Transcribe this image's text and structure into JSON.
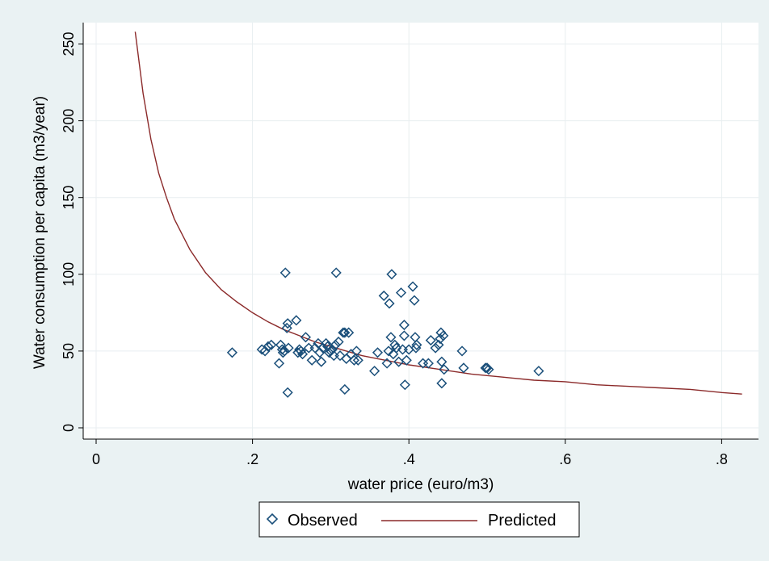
{
  "chart_data": {
    "type": "scatter",
    "xlabel": "water price (euro/m3)",
    "ylabel": "Water consumption  per capita (m3/year)",
    "xlim": [
      0,
      0.85
    ],
    "ylim": [
      0,
      260
    ],
    "x_ticks": [
      0,
      0.2,
      0.4,
      0.6,
      0.8
    ],
    "x_tick_labels": [
      "0",
      ".2",
      ".4",
      ".6",
      ".8"
    ],
    "y_ticks": [
      0,
      50,
      100,
      150,
      200,
      250
    ],
    "y_tick_labels": [
      "0",
      "50",
      "100",
      "150",
      "200",
      "250"
    ],
    "grid": "horizontal and vertical at ticks",
    "legend_placement": "bottom-center",
    "colors": {
      "observed": "#1a4f7a",
      "predicted": "#8b2a2a",
      "background": "#eaf2f3",
      "plot_area": "#ffffff",
      "grid": "#e8eef0"
    },
    "series": [
      {
        "name": "Observed",
        "type": "scatter",
        "marker": "diamond-hollow",
        "points": [
          [
            0.174,
            49
          ],
          [
            0.212,
            51
          ],
          [
            0.216,
            50
          ],
          [
            0.22,
            53
          ],
          [
            0.224,
            54
          ],
          [
            0.234,
            42
          ],
          [
            0.236,
            54
          ],
          [
            0.238,
            51
          ],
          [
            0.239,
            49
          ],
          [
            0.241,
            50
          ],
          [
            0.242,
            101
          ],
          [
            0.244,
            65
          ],
          [
            0.245,
            68
          ],
          [
            0.245,
            23
          ],
          [
            0.246,
            52
          ],
          [
            0.256,
            70
          ],
          [
            0.258,
            49
          ],
          [
            0.26,
            51
          ],
          [
            0.262,
            50
          ],
          [
            0.264,
            48
          ],
          [
            0.268,
            59
          ],
          [
            0.272,
            52
          ],
          [
            0.276,
            44
          ],
          [
            0.28,
            52
          ],
          [
            0.284,
            55
          ],
          [
            0.286,
            49
          ],
          [
            0.288,
            43
          ],
          [
            0.29,
            52
          ],
          [
            0.294,
            55
          ],
          [
            0.296,
            53
          ],
          [
            0.298,
            49
          ],
          [
            0.3,
            50
          ],
          [
            0.302,
            51
          ],
          [
            0.304,
            47
          ],
          [
            0.306,
            54
          ],
          [
            0.307,
            101
          ],
          [
            0.31,
            56
          ],
          [
            0.312,
            47
          ],
          [
            0.316,
            62
          ],
          [
            0.318,
            25
          ],
          [
            0.318,
            62
          ],
          [
            0.32,
            45
          ],
          [
            0.323,
            62
          ],
          [
            0.326,
            48
          ],
          [
            0.33,
            44
          ],
          [
            0.333,
            50
          ],
          [
            0.335,
            44
          ],
          [
            0.356,
            37
          ],
          [
            0.36,
            49
          ],
          [
            0.368,
            86
          ],
          [
            0.372,
            42
          ],
          [
            0.374,
            50
          ],
          [
            0.375,
            81
          ],
          [
            0.377,
            59
          ],
          [
            0.378,
            100
          ],
          [
            0.38,
            48
          ],
          [
            0.382,
            54
          ],
          [
            0.384,
            52
          ],
          [
            0.387,
            43
          ],
          [
            0.39,
            88
          ],
          [
            0.392,
            51
          ],
          [
            0.394,
            67
          ],
          [
            0.394,
            60
          ],
          [
            0.395,
            28
          ],
          [
            0.397,
            44
          ],
          [
            0.4,
            51
          ],
          [
            0.405,
            92
          ],
          [
            0.407,
            83
          ],
          [
            0.408,
            59
          ],
          [
            0.409,
            52
          ],
          [
            0.41,
            54
          ],
          [
            0.418,
            42
          ],
          [
            0.425,
            42
          ],
          [
            0.428,
            57
          ],
          [
            0.434,
            52
          ],
          [
            0.438,
            54
          ],
          [
            0.44,
            58
          ],
          [
            0.441,
            62
          ],
          [
            0.442,
            43
          ],
          [
            0.442,
            29
          ],
          [
            0.444,
            60
          ],
          [
            0.445,
            38
          ],
          [
            0.468,
            50
          ],
          [
            0.47,
            39
          ],
          [
            0.498,
            39
          ],
          [
            0.5,
            39
          ],
          [
            0.502,
            38
          ],
          [
            0.566,
            37
          ]
        ]
      },
      {
        "name": "Predicted",
        "type": "line",
        "points": [
          [
            0.05,
            258
          ],
          [
            0.06,
            218
          ],
          [
            0.07,
            188
          ],
          [
            0.08,
            166
          ],
          [
            0.09,
            150
          ],
          [
            0.1,
            136
          ],
          [
            0.12,
            116
          ],
          [
            0.14,
            101
          ],
          [
            0.16,
            90
          ],
          [
            0.18,
            82
          ],
          [
            0.2,
            75
          ],
          [
            0.22,
            69
          ],
          [
            0.24,
            64
          ],
          [
            0.26,
            60
          ],
          [
            0.28,
            56
          ],
          [
            0.3,
            53
          ],
          [
            0.32,
            50
          ],
          [
            0.34,
            47
          ],
          [
            0.36,
            45
          ],
          [
            0.38,
            43
          ],
          [
            0.4,
            41
          ],
          [
            0.44,
            38
          ],
          [
            0.48,
            35
          ],
          [
            0.52,
            33
          ],
          [
            0.56,
            31
          ],
          [
            0.6,
            30
          ],
          [
            0.64,
            28
          ],
          [
            0.68,
            27
          ],
          [
            0.72,
            26
          ],
          [
            0.76,
            25
          ],
          [
            0.8,
            23
          ],
          [
            0.826,
            22
          ]
        ]
      }
    ]
  }
}
